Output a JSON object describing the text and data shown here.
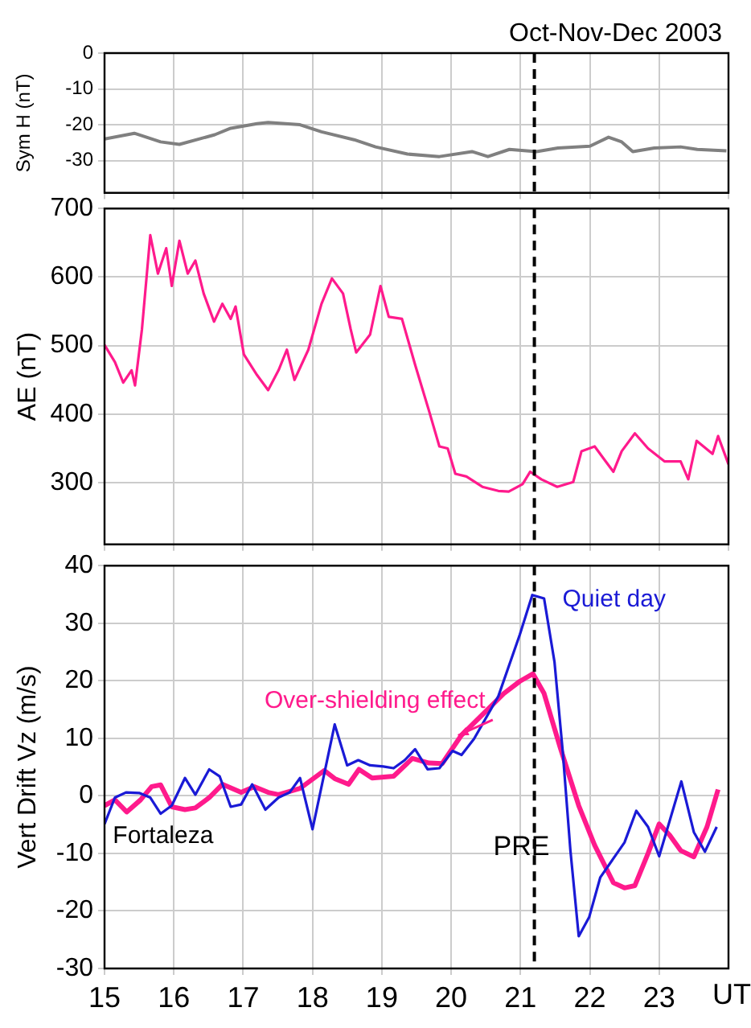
{
  "chart_data": [
    {
      "type": "line",
      "title": "Oct-Nov-Dec 2003",
      "ylabel": "Sym H (nT)",
      "xlim": [
        15,
        24
      ],
      "xticks": [
        15,
        16,
        17,
        18,
        19,
        20,
        21,
        22,
        23,
        24
      ],
      "ylim": [
        -39,
        0
      ],
      "yticks": [
        -30,
        -20,
        -10,
        0
      ],
      "grid": true,
      "legend": false,
      "marker": "none",
      "line_style": "solid",
      "tick_labels": "y",
      "ref_lines": [
        {
          "axis": "x",
          "value": 21.2,
          "line_style": "dashed",
          "color": "#000000"
        }
      ],
      "series": [
        {
          "color": "#808080",
          "x": [
            15.0,
            15.43,
            15.81,
            16.08,
            16.59,
            16.82,
            17.2,
            17.36,
            17.82,
            18.13,
            18.6,
            18.91,
            19.37,
            19.83,
            20.3,
            20.53,
            20.84,
            21.23,
            21.54,
            22.0,
            22.27,
            22.46,
            22.62,
            22.93,
            23.31,
            23.55,
            23.97
          ],
          "values": [
            -24,
            -22.4,
            -24.8,
            -25.5,
            -22.8,
            -21,
            -19.7,
            -19.4,
            -20,
            -22,
            -24.2,
            -26.2,
            -28.2,
            -28.9,
            -27.5,
            -28.9,
            -26.9,
            -27.5,
            -26.5,
            -26,
            -23.5,
            -24.8,
            -27.5,
            -26.5,
            -26.2,
            -26.9,
            -27.3
          ]
        }
      ]
    },
    {
      "type": "line",
      "ylabel": "AE (nT)",
      "xlim": [
        15,
        24
      ],
      "xticks": [
        15,
        16,
        17,
        18,
        19,
        20,
        21,
        22,
        23,
        24
      ],
      "ylim": [
        210,
        700
      ],
      "yticks": [
        300,
        400,
        500,
        600,
        700
      ],
      "grid": true,
      "legend": false,
      "marker": "none",
      "line_style": "solid",
      "tick_labels": "y",
      "ref_lines": [
        {
          "axis": "x",
          "value": 21.2,
          "line_style": "dashed",
          "color": "#000000"
        }
      ],
      "series": [
        {
          "color": "#ff1a8c",
          "x": [
            15.0,
            15.15,
            15.27,
            15.39,
            15.44,
            15.54,
            15.66,
            15.77,
            15.89,
            15.97,
            16.08,
            16.2,
            16.31,
            16.43,
            16.58,
            16.7,
            16.82,
            16.89,
            17.01,
            17.2,
            17.36,
            17.51,
            17.63,
            17.74,
            17.94,
            18.13,
            18.28,
            18.44,
            18.55,
            18.63,
            18.83,
            18.98,
            19.1,
            19.29,
            19.48,
            19.68,
            19.83,
            19.95,
            20.06,
            20.22,
            20.45,
            20.68,
            20.83,
            21.03,
            21.14,
            21.3,
            21.53,
            21.76,
            21.88,
            22.07,
            22.23,
            22.34,
            22.46,
            22.65,
            22.84,
            23.08,
            23.31,
            23.42,
            23.54,
            23.77,
            23.85,
            24.0
          ],
          "values": [
            501,
            476,
            446,
            464,
            442,
            524,
            661,
            605,
            642,
            587,
            653,
            605,
            624,
            576,
            535,
            561,
            539,
            557,
            487,
            457,
            435,
            464,
            494,
            450,
            494,
            561,
            598,
            576,
            524,
            490,
            516,
            587,
            542,
            539,
            472,
            405,
            353,
            350,
            313,
            309,
            294,
            288,
            287,
            298,
            316,
            305,
            294,
            301,
            346,
            353,
            331,
            316,
            346,
            372,
            350,
            331,
            331,
            305,
            361,
            342,
            368,
            327
          ]
        }
      ]
    },
    {
      "type": "line",
      "ylabel": "Vert Drift Vz (m/s)",
      "xlabel": "UT",
      "xlim": [
        15,
        24
      ],
      "xticks": [
        15,
        16,
        17,
        18,
        19,
        20,
        21,
        22,
        23
      ],
      "ylim": [
        -30,
        40
      ],
      "yticks": [
        -30,
        -20,
        -10,
        0,
        10,
        20,
        30,
        40
      ],
      "grid": true,
      "legend": false,
      "marker": "none",
      "line_style": "solid",
      "ref_lines": [
        {
          "axis": "x",
          "value": 21.2,
          "label": "PRE",
          "line_style": "dashed",
          "color": "#000000"
        }
      ],
      "annotations": [
        "Fortaleza"
      ],
      "series": [
        {
          "name": "Quiet day",
          "color": "#1a1ad6",
          "x": [
            15.0,
            15.15,
            15.31,
            15.5,
            15.66,
            15.81,
            15.97,
            16.16,
            16.31,
            16.51,
            16.66,
            16.82,
            16.97,
            17.13,
            17.32,
            17.51,
            17.67,
            17.82,
            18.0,
            18.32,
            18.5,
            18.66,
            18.83,
            19.02,
            19.17,
            19.33,
            19.48,
            19.66,
            19.83,
            20.02,
            20.15,
            20.33,
            20.68,
            20.99,
            21.17,
            21.34,
            21.49,
            21.61,
            21.72,
            21.84,
            21.99,
            22.15,
            22.5,
            22.67,
            22.84,
            23.0,
            23.32,
            23.5,
            23.66,
            23.83
          ],
          "values": [
            -4.9,
            -0.3,
            0.6,
            0.5,
            -0.3,
            -3.1,
            -1.7,
            3.1,
            0.2,
            4.6,
            3.4,
            -1.9,
            -1.5,
            2.0,
            -2.4,
            -0.3,
            0.6,
            3.1,
            -5.8,
            12.4,
            5.3,
            6.2,
            5.3,
            5.1,
            4.8,
            6.2,
            8.1,
            4.6,
            4.8,
            7.8,
            7.1,
            9.9,
            17.3,
            28,
            34.9,
            34.3,
            23.3,
            7.6,
            -9.5,
            -24.4,
            -21.1,
            -14.2,
            -8.1,
            -2.6,
            -5.4,
            -10.5,
            2.5,
            -6.3,
            -9.7,
            -5.4
          ]
        },
        {
          "name": "Over-shielding effect",
          "color": "#ff1a8c",
          "x": [
            15.0,
            15.15,
            15.32,
            15.52,
            15.68,
            15.81,
            15.97,
            16.16,
            16.31,
            16.51,
            16.7,
            16.97,
            17.16,
            17.36,
            17.51,
            17.82,
            18.17,
            18.32,
            18.52,
            18.67,
            18.86,
            19.17,
            19.44,
            19.68,
            19.87,
            20.14,
            20.45,
            20.76,
            20.99,
            21.18,
            21.34,
            21.57,
            21.84,
            22.07,
            22.34,
            22.5,
            22.65,
            22.84,
            23.0,
            23.15,
            23.31,
            23.5,
            23.69,
            23.85
          ],
          "values": [
            -1.7,
            -0.7,
            -2.8,
            -0.7,
            1.6,
            1.9,
            -1.9,
            -2.4,
            -2.1,
            -0.3,
            2.0,
            0.6,
            1.6,
            0.6,
            0.2,
            1.3,
            4.4,
            3.0,
            2.0,
            4.6,
            3.1,
            3.4,
            6.5,
            5.7,
            5.6,
            10.4,
            14.1,
            17.8,
            19.9,
            21.2,
            17.8,
            8.5,
            -1.7,
            -8.6,
            -15.1,
            -16.0,
            -15.6,
            -10.0,
            -4.9,
            -6.8,
            -9.5,
            -10.6,
            -5.4,
            1.1
          ]
        }
      ]
    }
  ]
}
